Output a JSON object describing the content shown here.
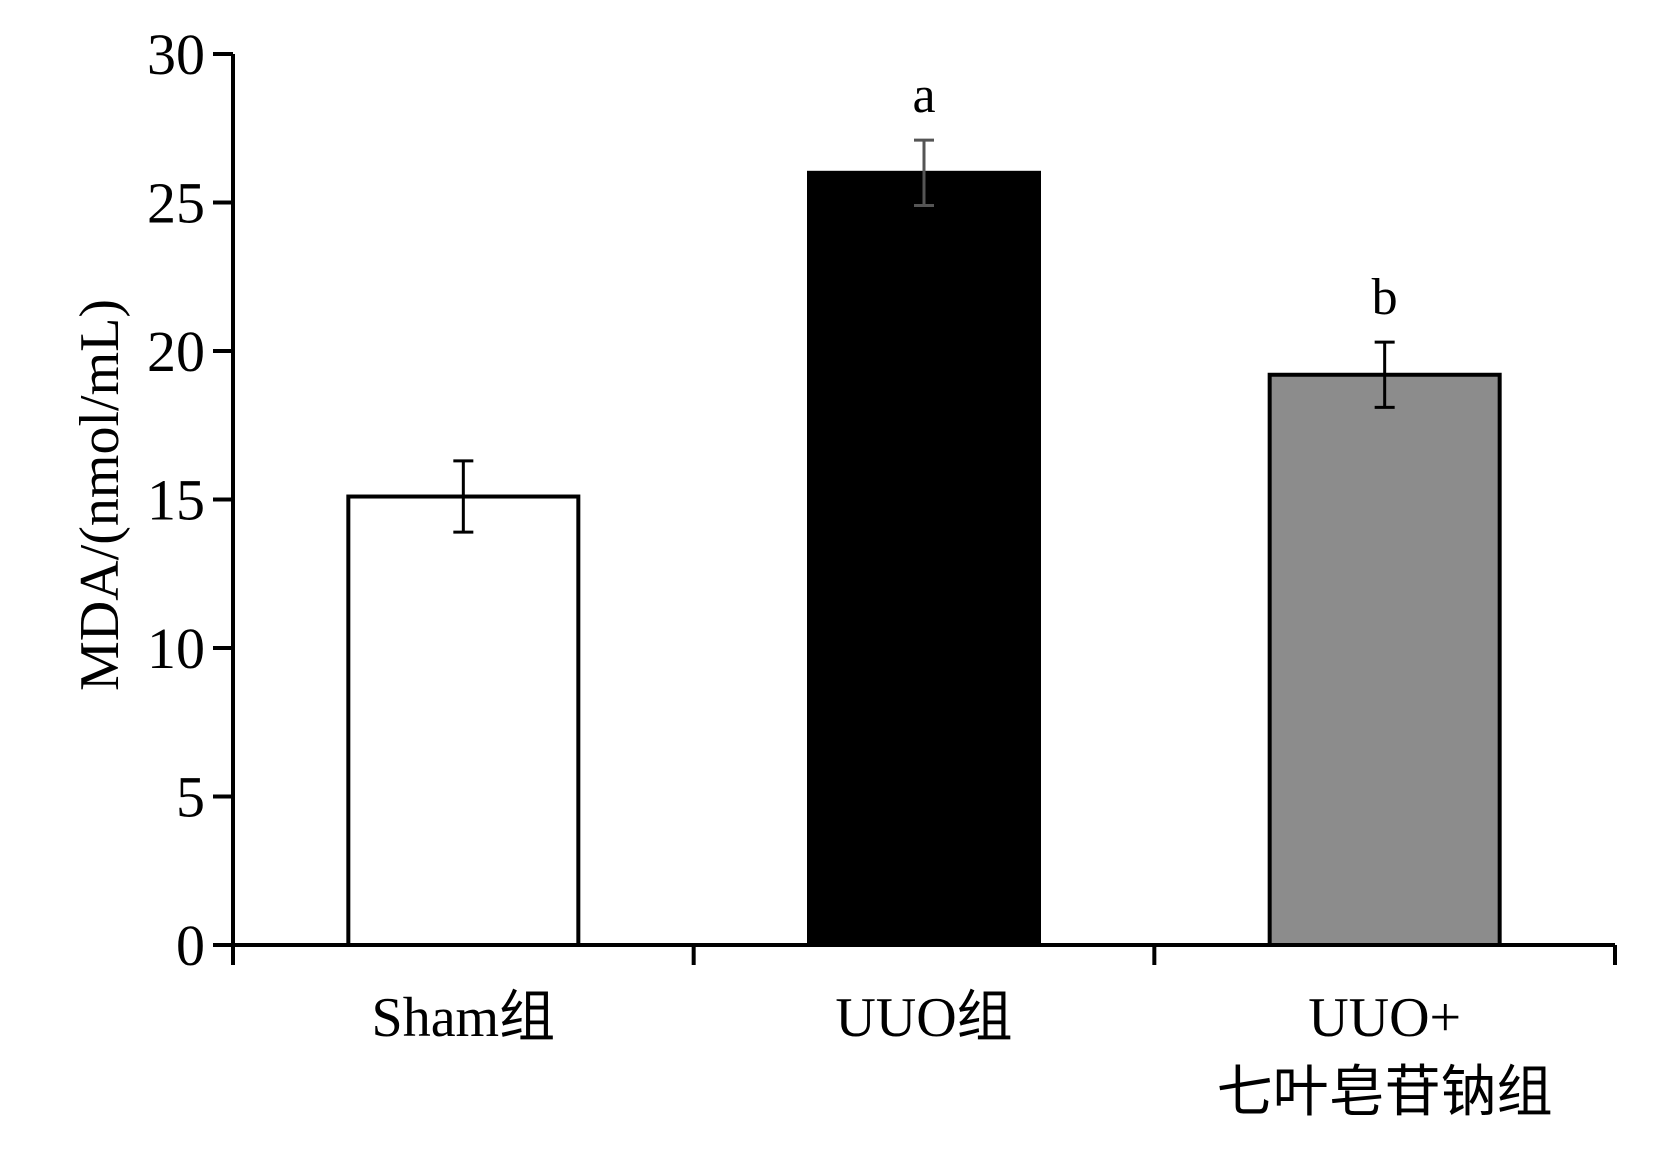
{
  "chart_data": {
    "type": "bar",
    "categories": [
      "Sham组",
      "UUO组",
      "UUO+\n七叶皂苷钠组"
    ],
    "category_lines": [
      [
        "Sham组"
      ],
      [
        "UUO组"
      ],
      [
        "UUO+",
        "七叶皂苷钠组"
      ]
    ],
    "values": [
      15.1,
      26.0,
      19.2
    ],
    "errors": [
      1.2,
      1.1,
      1.1
    ],
    "significance": [
      "",
      "a",
      "b"
    ],
    "bar_fills": [
      "#ffffff",
      "#000000",
      "#8c8c8c"
    ],
    "bar_stroke": "#000000",
    "title": "",
    "xlabel": "",
    "ylabel": "MDA/(nmol/mL)",
    "ylim": [
      0,
      30
    ],
    "yticks": [
      0,
      5,
      10,
      15,
      20,
      25,
      30
    ],
    "grid": false,
    "legend": "none"
  }
}
